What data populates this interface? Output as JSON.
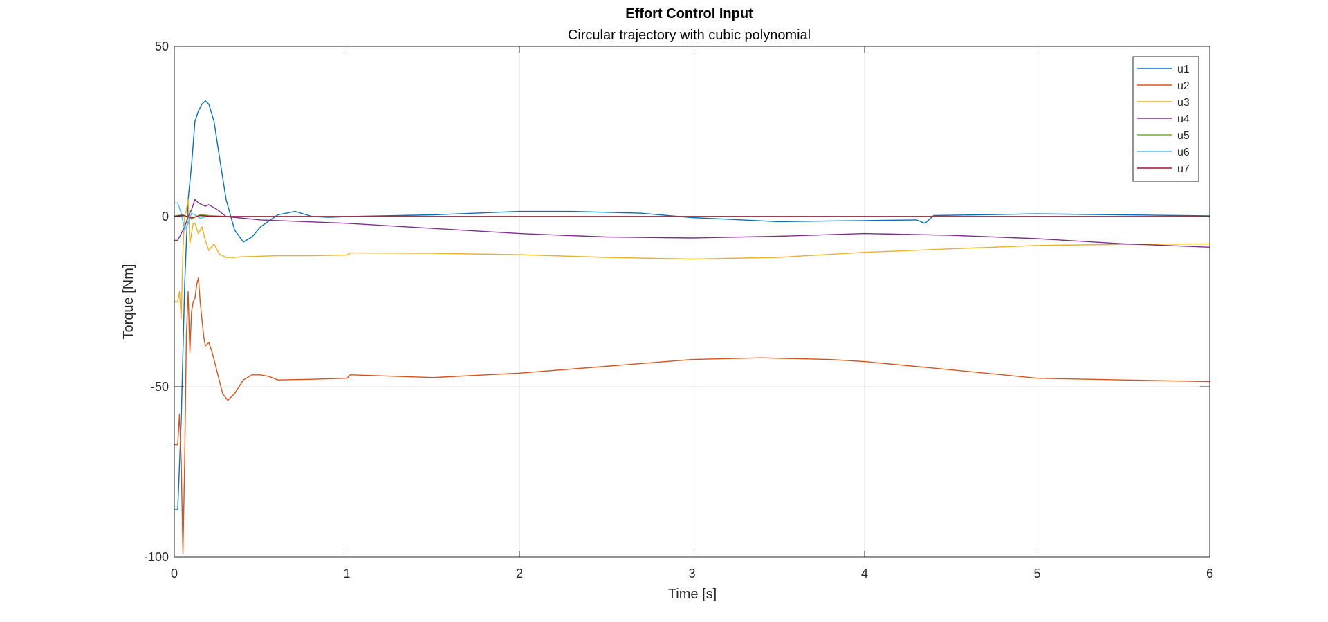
{
  "chart_data": {
    "type": "line",
    "title": "Effort Control Input",
    "subtitle": "Circular trajectory with cubic polynomial",
    "xlabel": "Time [s]",
    "ylabel": "Torque [Nm]",
    "xlim": [
      0,
      6
    ],
    "ylim": [
      -100,
      50
    ],
    "xticks": [
      0,
      1,
      2,
      3,
      4,
      5,
      6
    ],
    "yticks": [
      50,
      0,
      -50,
      -100
    ],
    "grid": true,
    "legend_position": "top-right",
    "series": [
      {
        "name": "u1",
        "color": "#0072BD",
        "x": [
          0,
          0.02,
          0.04,
          0.06,
          0.08,
          0.1,
          0.12,
          0.14,
          0.16,
          0.18,
          0.2,
          0.23,
          0.26,
          0.3,
          0.35,
          0.4,
          0.45,
          0.5,
          0.6,
          0.7,
          0.8,
          0.9,
          1.0,
          1.5,
          2.0,
          2.3,
          2.7,
          3.0,
          3.5,
          3.8,
          4.0,
          4.3,
          4.35,
          4.4,
          5.0,
          5.5,
          6.0
        ],
        "y": [
          -86,
          -86,
          -60,
          -20,
          5,
          15,
          28,
          31,
          33,
          34,
          33,
          28,
          18,
          5,
          -4,
          -7.5,
          -6,
          -3,
          0.5,
          1.5,
          0,
          -0.2,
          0,
          0.5,
          1.5,
          1.5,
          1,
          -0.3,
          -1.5,
          -1.3,
          -1.2,
          -1,
          -2,
          0.3,
          0.8,
          0.5,
          0.2
        ]
      },
      {
        "name": "u2",
        "color": "#D95319",
        "x": [
          0,
          0.02,
          0.03,
          0.04,
          0.05,
          0.06,
          0.07,
          0.08,
          0.09,
          0.1,
          0.11,
          0.12,
          0.13,
          0.14,
          0.15,
          0.16,
          0.17,
          0.18,
          0.2,
          0.22,
          0.25,
          0.28,
          0.31,
          0.35,
          0.4,
          0.45,
          0.5,
          0.55,
          0.6,
          0.8,
          1.0,
          1.02,
          1.5,
          2.0,
          2.5,
          3.0,
          3.4,
          3.8,
          4.0,
          4.5,
          5.0,
          5.5,
          6.0
        ],
        "y": [
          -67,
          -67,
          -58,
          -72,
          -99,
          -72,
          -35,
          -22,
          -40,
          -28,
          -25,
          -24,
          -20,
          -18,
          -25,
          -30,
          -35,
          -38,
          -37,
          -40,
          -46,
          -52,
          -54,
          -52,
          -48,
          -46.5,
          -46.5,
          -47,
          -48,
          -47.8,
          -47.5,
          -46.5,
          -47.3,
          -46,
          -44,
          -42,
          -41.5,
          -42,
          -42.6,
          -45,
          -47.5,
          -48,
          -48.5
        ]
      },
      {
        "name": "u3",
        "color": "#EDB120",
        "x": [
          0,
          0.02,
          0.03,
          0.04,
          0.05,
          0.06,
          0.07,
          0.08,
          0.09,
          0.1,
          0.11,
          0.12,
          0.14,
          0.16,
          0.18,
          0.2,
          0.23,
          0.26,
          0.3,
          0.35,
          0.4,
          0.6,
          0.8,
          1.0,
          1.02,
          1.5,
          2.0,
          2.5,
          3.0,
          3.5,
          4.0,
          4.5,
          5.0,
          5.5,
          6.0
        ],
        "y": [
          -25,
          -25,
          -22,
          -30,
          -10,
          0,
          2,
          5,
          -8,
          -5,
          -2,
          -2,
          -5,
          -3,
          -7,
          -10,
          -8,
          -11,
          -12,
          -12,
          -11.8,
          -11.5,
          -11.5,
          -11.3,
          -10.7,
          -10.8,
          -11.2,
          -12,
          -12.5,
          -12,
          -10.5,
          -9.5,
          -8.5,
          -8.2,
          -8
        ]
      },
      {
        "name": "u4",
        "color": "#7E2F8E",
        "x": [
          0,
          0.02,
          0.04,
          0.06,
          0.08,
          0.1,
          0.12,
          0.14,
          0.16,
          0.18,
          0.2,
          0.25,
          0.3,
          0.5,
          1.0,
          1.5,
          2.0,
          2.5,
          3.0,
          3.5,
          4.0,
          4.5,
          5.0,
          5.5,
          6.0
        ],
        "y": [
          -7,
          -7,
          -5,
          -3,
          0,
          2,
          5,
          4,
          3.5,
          3,
          3.5,
          2,
          0,
          -1,
          -2,
          -3.5,
          -5,
          -6,
          -6.3,
          -5.8,
          -5,
          -5.5,
          -6.5,
          -8,
          -9
        ]
      },
      {
        "name": "u5",
        "color": "#77AC30",
        "x": [
          0,
          0.05,
          0.1,
          0.15,
          0.2,
          0.3,
          0.5,
          1,
          2,
          3,
          4,
          5,
          6
        ],
        "y": [
          0.2,
          0.5,
          -0.8,
          0.6,
          0.3,
          0,
          0,
          0,
          0,
          0,
          0,
          0,
          0
        ]
      },
      {
        "name": "u6",
        "color": "#4DBEEE",
        "x": [
          0,
          0.02,
          0.04,
          0.06,
          0.08,
          0.1,
          0.12,
          0.15,
          0.2,
          0.3,
          0.5,
          1,
          2,
          3,
          4,
          5,
          6
        ],
        "y": [
          4,
          4,
          1,
          -4,
          -2,
          1,
          0.5,
          -0.5,
          0.2,
          0,
          0,
          0,
          0,
          0,
          0,
          0,
          0
        ]
      },
      {
        "name": "u7",
        "color": "#A2142F",
        "x": [
          0,
          0.05,
          0.1,
          0.15,
          0.2,
          0.3,
          0.5,
          1,
          2,
          3,
          4,
          5,
          6
        ],
        "y": [
          0,
          0.4,
          -0.4,
          0.3,
          0.1,
          0,
          0,
          0,
          0,
          0,
          0,
          0,
          0
        ]
      }
    ]
  }
}
